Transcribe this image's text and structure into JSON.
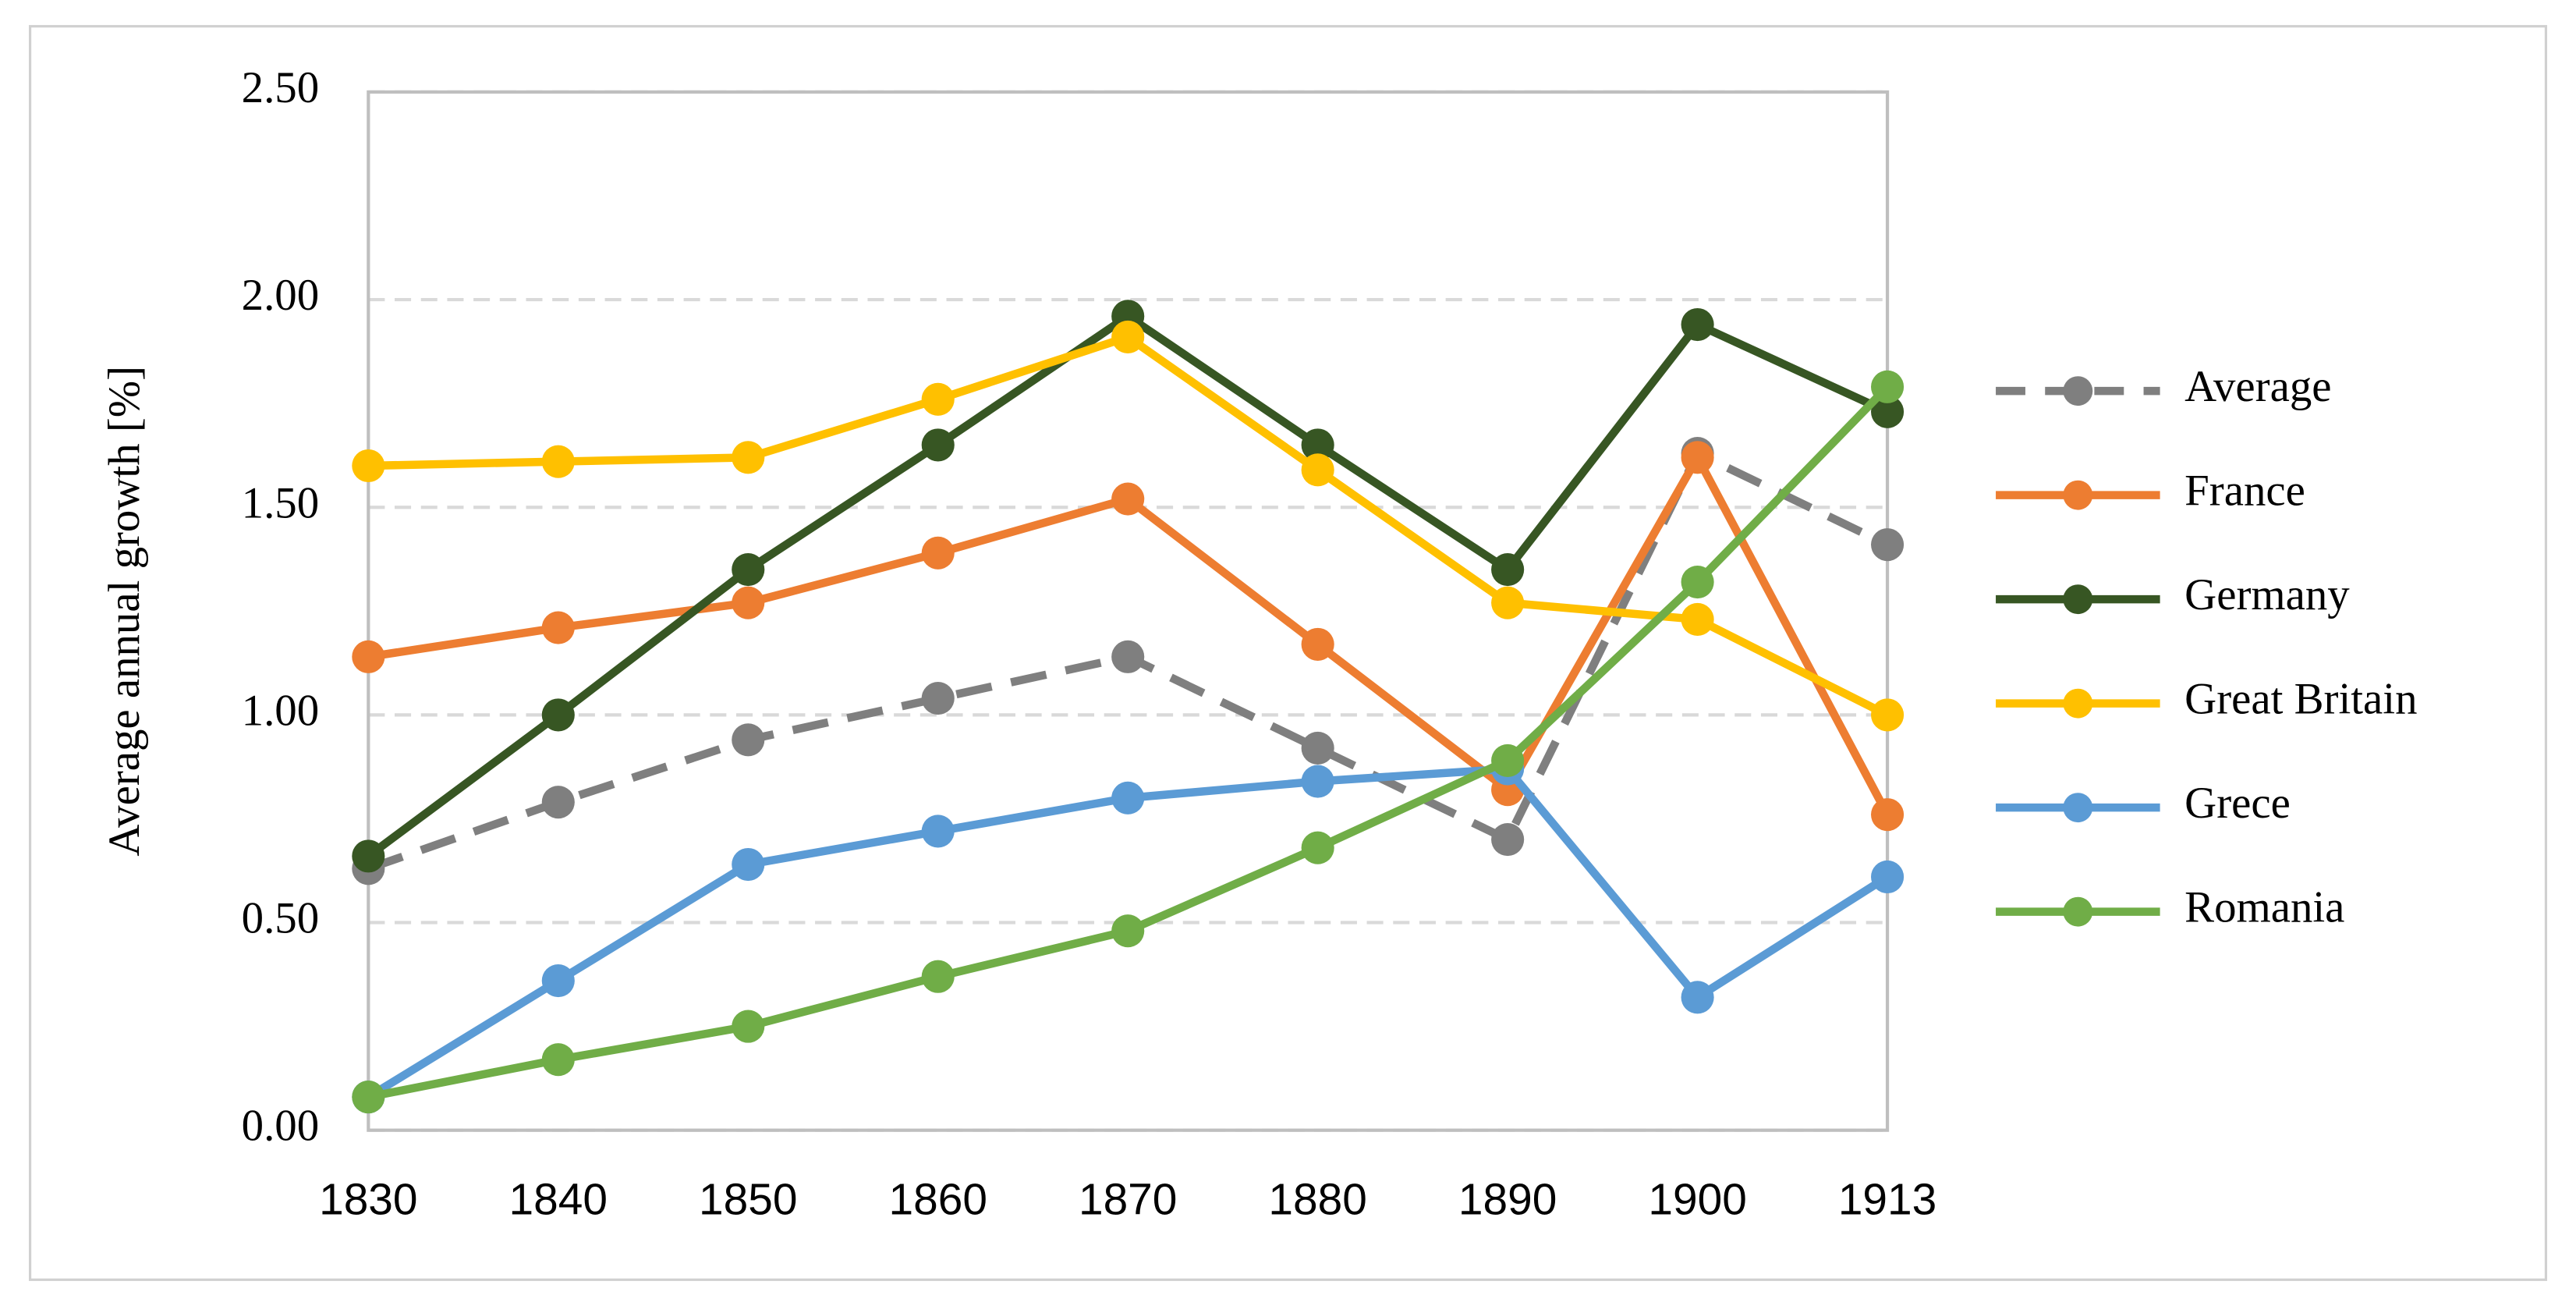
{
  "chart_data": {
    "type": "line",
    "y_label": "Average annual growth [%]",
    "categories": [
      "1830",
      "1840",
      "1850",
      "1860",
      "1870",
      "1880",
      "1890",
      "1900",
      "1913"
    ],
    "ylim": [
      0,
      2.5
    ],
    "yticks": [
      {
        "value": 0,
        "label": "0.00"
      },
      {
        "value": 0.5,
        "label": "0.50"
      },
      {
        "value": 1,
        "label": "1.00"
      },
      {
        "value": 1.5,
        "label": "1.50"
      },
      {
        "value": 2,
        "label": "2.00"
      },
      {
        "value": 2.5,
        "label": "2.50"
      }
    ],
    "grid": true,
    "legend": "right",
    "series": [
      {
        "name": "Average",
        "color": "#7f7f7f",
        "dashed": true,
        "values": [
          0.63,
          0.79,
          0.94,
          1.04,
          1.14,
          0.92,
          0.7,
          1.63,
          1.41
        ]
      },
      {
        "name": "France",
        "color": "#ed7d31",
        "values": [
          1.14,
          1.21,
          1.27,
          1.39,
          1.52,
          1.17,
          0.82,
          1.62,
          0.76
        ]
      },
      {
        "name": "Germany",
        "color": "#375623",
        "values": [
          0.66,
          1.0,
          1.35,
          1.65,
          1.96,
          1.65,
          1.35,
          1.94,
          1.73
        ]
      },
      {
        "name": "Great Britain",
        "color": "#ffc000",
        "values": [
          1.6,
          1.61,
          1.62,
          1.76,
          1.91,
          1.59,
          1.27,
          1.23,
          1.0
        ]
      },
      {
        "name": "Grece",
        "color": "#5b9bd5",
        "values": [
          0.08,
          0.36,
          0.64,
          0.72,
          0.8,
          0.84,
          0.87,
          0.32,
          0.61
        ]
      },
      {
        "name": "Romania",
        "color": "#70ad47",
        "values": [
          0.08,
          0.17,
          0.25,
          0.37,
          0.48,
          0.68,
          0.89,
          1.32,
          1.79
        ]
      }
    ]
  }
}
